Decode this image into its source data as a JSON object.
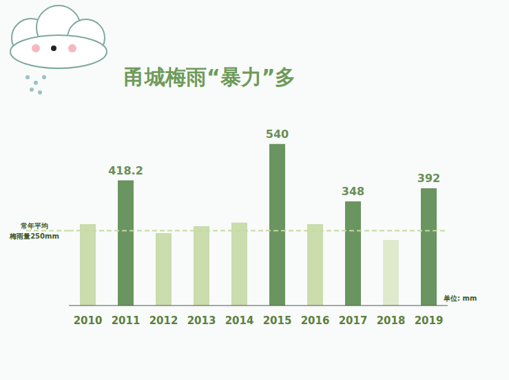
{
  "chart_data": {
    "type": "bar",
    "title": "甬城梅雨“暴力”多",
    "categories": [
      "2010",
      "2011",
      "2012",
      "2013",
      "2014",
      "2015",
      "2016",
      "2017",
      "2018",
      "2019"
    ],
    "values": [
      272,
      418.2,
      242,
      265,
      277,
      540,
      272,
      348,
      219,
      392
    ],
    "value_labels": [
      null,
      "418.2",
      null,
      null,
      null,
      "540",
      null,
      "348",
      null,
      "392"
    ],
    "colors": [
      "#cbdcad",
      "#6a9460",
      "#cbdcad",
      "#cbdcad",
      "#cbdcad",
      "#6a9460",
      "#cbdcad",
      "#6a9460",
      "#dfe9cc",
      "#6a9460"
    ],
    "ylim": [
      0,
      560
    ],
    "tick_labels": "x",
    "grid": false,
    "annotations": {
      "reference_line": {
        "value": 250,
        "label": [
          "常年平均",
          "梅雨量250mm"
        ]
      },
      "unit": "单位: mm"
    }
  }
}
